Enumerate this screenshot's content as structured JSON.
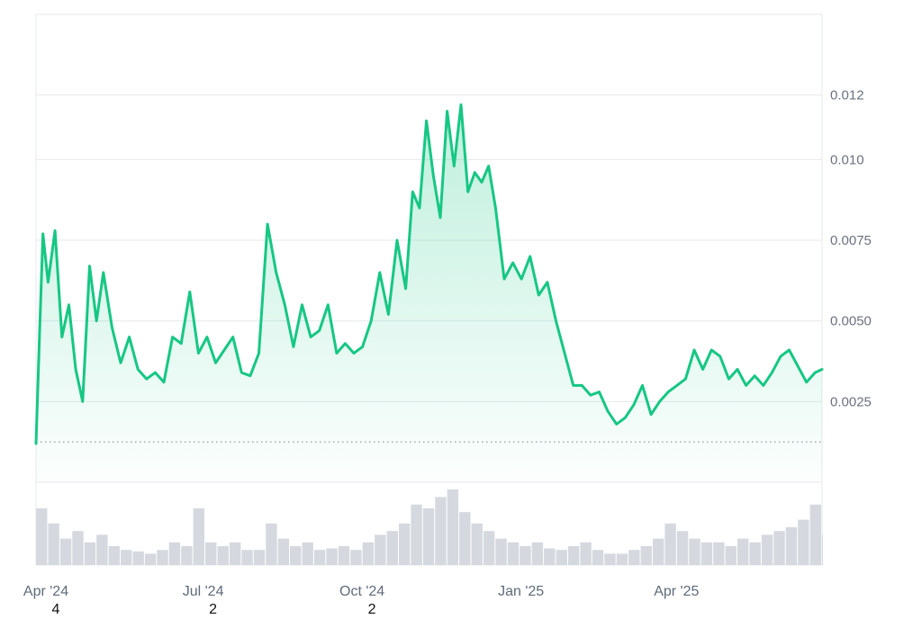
{
  "colors": {
    "line": "#16c784",
    "fill_top": "#16c784",
    "grid": "#e6e8ec",
    "volume": "#d5d9df",
    "baseline": "#8a8f98",
    "tick_text": "#6b7280"
  },
  "chart_data": {
    "type": "area",
    "title": "",
    "xlabel": "",
    "ylabel": "",
    "x_range": [
      "2024-04-01",
      "2025-06-30"
    ],
    "ylim": [
      0,
      0.0145
    ],
    "grid": true,
    "y_ticks": [
      {
        "value": 0.0025,
        "label": "0.0025"
      },
      {
        "value": 0.005,
        "label": "0.0050"
      },
      {
        "value": 0.0075,
        "label": "0.0075"
      },
      {
        "value": 0.01,
        "label": "0.010"
      },
      {
        "value": 0.012,
        "label": "0.012"
      }
    ],
    "x_ticks": [
      {
        "date": "2024-04-01",
        "label": "Apr '24",
        "sub": "4"
      },
      {
        "date": "2024-07-01",
        "label": "Jul '24",
        "sub": "2"
      },
      {
        "date": "2024-10-01",
        "label": "Oct '24",
        "sub": "2"
      },
      {
        "date": "2025-01-01",
        "label": "Jan '25",
        "sub": ""
      },
      {
        "date": "2025-04-01",
        "label": "Apr '25",
        "sub": ""
      }
    ],
    "reference_line": {
      "value": 0.00125,
      "style": "dotted"
    },
    "series": [
      {
        "x": [
          "2024-04-01",
          "2024-04-03",
          "2024-04-05",
          "2024-04-08",
          "2024-04-12",
          "2024-04-16",
          "2024-04-20",
          "2024-04-24",
          "2024-04-28",
          "2024-05-02",
          "2024-05-06",
          "2024-05-10",
          "2024-05-15",
          "2024-05-20",
          "2024-05-25",
          "2024-05-30",
          "2024-06-04",
          "2024-06-09",
          "2024-06-14",
          "2024-06-19",
          "2024-06-24",
          "2024-06-29",
          "2024-07-04",
          "2024-07-09",
          "2024-07-14",
          "2024-07-19",
          "2024-07-24",
          "2024-07-29",
          "2024-08-03",
          "2024-08-08",
          "2024-08-13",
          "2024-08-18",
          "2024-08-23",
          "2024-08-28",
          "2024-09-02",
          "2024-09-07",
          "2024-09-12",
          "2024-09-17",
          "2024-09-22",
          "2024-09-27",
          "2024-10-02",
          "2024-10-07",
          "2024-10-12",
          "2024-10-17",
          "2024-10-22",
          "2024-10-27",
          "2024-11-01",
          "2024-11-05",
          "2024-11-09",
          "2024-11-13",
          "2024-11-17",
          "2024-11-21",
          "2024-11-25",
          "2024-11-29",
          "2024-12-03",
          "2024-12-07",
          "2024-12-11",
          "2024-12-15",
          "2024-12-19",
          "2024-12-23",
          "2024-12-28",
          "2025-01-02",
          "2025-01-07",
          "2025-01-12",
          "2025-01-17",
          "2025-01-22",
          "2025-01-27",
          "2025-02-01",
          "2025-02-06",
          "2025-02-11",
          "2025-02-16",
          "2025-02-21",
          "2025-02-26",
          "2025-03-03",
          "2025-03-08",
          "2025-03-13",
          "2025-03-18",
          "2025-03-23",
          "2025-03-28",
          "2025-04-02",
          "2025-04-07",
          "2025-04-12",
          "2025-04-17",
          "2025-04-22",
          "2025-04-27",
          "2025-05-02",
          "2025-05-07",
          "2025-05-12",
          "2025-05-17",
          "2025-05-22",
          "2025-05-27",
          "2025-06-01",
          "2025-06-06",
          "2025-06-11",
          "2025-06-16",
          "2025-06-21",
          "2025-06-26",
          "2025-06-30"
        ],
        "y": [
          0.0012,
          0.0045,
          0.0077,
          0.0062,
          0.0078,
          0.0045,
          0.0055,
          0.0035,
          0.0025,
          0.0067,
          0.005,
          0.0065,
          0.0048,
          0.0037,
          0.0045,
          0.0035,
          0.0032,
          0.0034,
          0.0031,
          0.0045,
          0.0043,
          0.0059,
          0.004,
          0.0045,
          0.0037,
          0.0041,
          0.0045,
          0.0034,
          0.0033,
          0.004,
          0.008,
          0.0065,
          0.0055,
          0.0042,
          0.0055,
          0.0045,
          0.0047,
          0.0055,
          0.004,
          0.0043,
          0.004,
          0.0042,
          0.005,
          0.0065,
          0.0052,
          0.0075,
          0.006,
          0.009,
          0.0085,
          0.0112,
          0.0095,
          0.0082,
          0.0115,
          0.0098,
          0.0117,
          0.009,
          0.0096,
          0.0093,
          0.0098,
          0.0085,
          0.0063,
          0.0068,
          0.0063,
          0.007,
          0.0058,
          0.0062,
          0.005,
          0.004,
          0.003,
          0.003,
          0.0027,
          0.0028,
          0.0022,
          0.0018,
          0.002,
          0.0024,
          0.003,
          0.0021,
          0.0025,
          0.0028,
          0.003,
          0.0032,
          0.0041,
          0.0035,
          0.0041,
          0.0039,
          0.0032,
          0.0035,
          0.003,
          0.0033,
          0.003,
          0.0034,
          0.0039,
          0.0041,
          0.0036,
          0.0031,
          0.0034,
          0.0035
        ]
      }
    ],
    "volume": {
      "x": [
        "2024-04-01",
        "2024-04-08",
        "2024-04-15",
        "2024-04-22",
        "2024-04-29",
        "2024-05-06",
        "2024-05-13",
        "2024-05-20",
        "2024-05-27",
        "2024-06-03",
        "2024-06-10",
        "2024-06-17",
        "2024-06-24",
        "2024-07-01",
        "2024-07-08",
        "2024-07-15",
        "2024-07-22",
        "2024-07-29",
        "2024-08-05",
        "2024-08-12",
        "2024-08-19",
        "2024-08-26",
        "2024-09-02",
        "2024-09-09",
        "2024-09-16",
        "2024-09-23",
        "2024-09-30",
        "2024-10-07",
        "2024-10-14",
        "2024-10-21",
        "2024-10-28",
        "2024-11-04",
        "2024-11-11",
        "2024-11-18",
        "2024-11-25",
        "2024-12-02",
        "2024-12-09",
        "2024-12-16",
        "2024-12-23",
        "2024-12-30",
        "2025-01-06",
        "2025-01-13",
        "2025-01-20",
        "2025-01-27",
        "2025-02-03",
        "2025-02-10",
        "2025-02-17",
        "2025-02-24",
        "2025-03-03",
        "2025-03-10",
        "2025-03-17",
        "2025-03-24",
        "2025-03-31",
        "2025-04-07",
        "2025-04-14",
        "2025-04-21",
        "2025-04-28",
        "2025-05-05",
        "2025-05-12",
        "2025-05-19",
        "2025-05-26",
        "2025-06-02",
        "2025-06-09",
        "2025-06-16",
        "2025-06-23",
        "2025-06-30"
      ],
      "values": [
        0.75,
        0.55,
        0.35,
        0.45,
        0.3,
        0.4,
        0.25,
        0.2,
        0.18,
        0.15,
        0.2,
        0.3,
        0.25,
        0.75,
        0.3,
        0.25,
        0.3,
        0.2,
        0.2,
        0.55,
        0.35,
        0.25,
        0.3,
        0.2,
        0.22,
        0.25,
        0.2,
        0.3,
        0.4,
        0.45,
        0.55,
        0.8,
        0.75,
        0.9,
        1.0,
        0.7,
        0.55,
        0.45,
        0.35,
        0.3,
        0.25,
        0.3,
        0.22,
        0.2,
        0.25,
        0.3,
        0.2,
        0.15,
        0.15,
        0.2,
        0.25,
        0.35,
        0.55,
        0.45,
        0.35,
        0.3,
        0.3,
        0.25,
        0.35,
        0.3,
        0.4,
        0.45,
        0.5,
        0.6,
        0.8,
        0.4
      ]
    }
  }
}
